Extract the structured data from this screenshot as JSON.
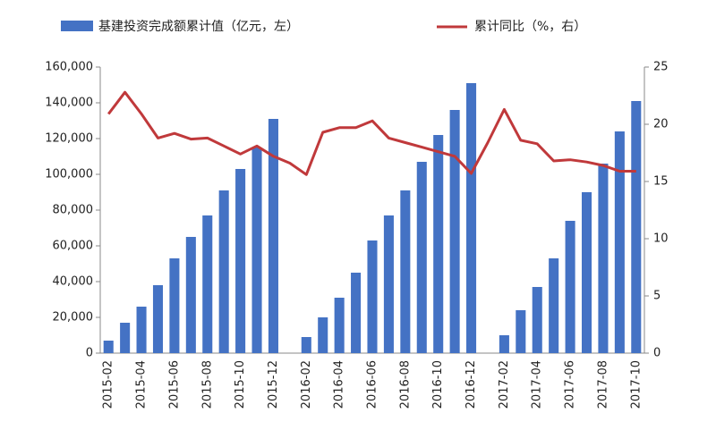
{
  "chart_data": {
    "type": "bar-line",
    "categories": [
      "2015-02",
      null,
      "2015-04",
      null,
      "2015-06",
      null,
      "2015-08",
      null,
      "2015-10",
      null,
      "2015-12",
      null,
      "2016-02",
      null,
      "2016-04",
      null,
      "2016-06",
      null,
      "2016-08",
      null,
      "2016-10",
      null,
      "2016-12",
      null,
      "2017-02",
      null,
      "2017-04",
      null,
      "2017-06",
      null,
      "2017-08",
      null,
      "2017-10"
    ],
    "series": [
      {
        "name": "基建投资完成额累计值（亿元，左）",
        "type": "bar",
        "color": "#4472c4",
        "axis": "y",
        "values": [
          7000,
          17000,
          26000,
          38000,
          53000,
          65000,
          77000,
          91000,
          103000,
          115000,
          131000,
          null,
          9000,
          20000,
          31000,
          45000,
          63000,
          77000,
          91000,
          107000,
          122000,
          136000,
          151000,
          null,
          10000,
          24000,
          37000,
          53000,
          74000,
          90000,
          106000,
          124000,
          141000
        ]
      },
      {
        "name": "累计同比（%，右）",
        "type": "line",
        "color": "#c0393b",
        "axis": "y2",
        "values": [
          20.9,
          22.8,
          20.9,
          18.8,
          19.2,
          18.7,
          18.8,
          18.1,
          17.4,
          18.1,
          17.2,
          16.6,
          15.6,
          19.3,
          19.7,
          19.7,
          20.3,
          18.8,
          18.4,
          18.0,
          17.6,
          17.2,
          15.7,
          18.4,
          21.3,
          18.6,
          18.3,
          16.8,
          16.9,
          16.7,
          16.4,
          15.9,
          15.9
        ]
      }
    ],
    "ylim": [
      0,
      160000
    ],
    "yticks": [
      0,
      {
        "value": 20000,
        "label": "20,000"
      },
      {
        "value": 40000,
        "label": "40,000"
      },
      {
        "value": 60000,
        "label": "60,000"
      },
      {
        "value": 80000,
        "label": "80,000"
      },
      {
        "value": 100000,
        "label": "100,000"
      },
      {
        "value": 120000,
        "label": "120,000"
      },
      {
        "value": 140000,
        "label": "140,000"
      },
      {
        "value": 160000,
        "label": "160,000"
      }
    ],
    "y2lim": [
      0,
      25
    ],
    "y2ticks": [
      0,
      5,
      10,
      15,
      20,
      25
    ],
    "grid": false
  }
}
